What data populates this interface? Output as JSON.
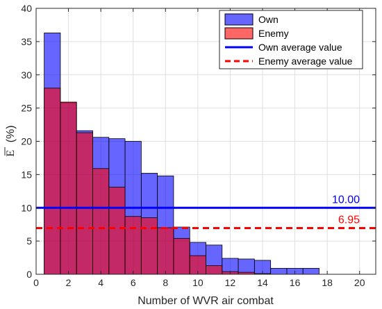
{
  "chart_data": {
    "type": "bar",
    "xlabel": "Number of WVR air combat",
    "ylabel": "E (%)",
    "ylabel_parts": {
      "symbol": "E",
      "unit": "(%)"
    },
    "xlim": [
      0,
      21
    ],
    "ylim": [
      0,
      40
    ],
    "xticks": [
      0,
      2,
      4,
      6,
      8,
      10,
      12,
      14,
      16,
      18,
      20
    ],
    "yticks": [
      0,
      5,
      10,
      15,
      20,
      25,
      30,
      35,
      40
    ],
    "grid": true,
    "legend_position": "top-right",
    "bin_width": 1,
    "bin_left_edges": [
      0.5,
      1.5,
      2.5,
      3.5,
      4.5,
      5.5,
      6.5,
      7.5,
      8.5,
      9.5,
      10.5,
      11.5,
      12.5,
      13.5,
      14.5,
      15.5,
      16.5
    ],
    "series": [
      {
        "name": "Own",
        "color": "#0000ff",
        "opacity": 0.6,
        "values": [
          36.3,
          25.8,
          21.6,
          20.6,
          20.4,
          20.0,
          15.2,
          14.8,
          7.1,
          4.8,
          4.4,
          2.4,
          2.3,
          2.1,
          0.9,
          0.9,
          0.9
        ]
      },
      {
        "name": "Enemy",
        "color": "#ff0000",
        "opacity": 0.6,
        "values": [
          28.0,
          25.9,
          21.3,
          15.9,
          13.1,
          8.7,
          8.5,
          7.0,
          5.4,
          2.8,
          1.3,
          0.4,
          0.3,
          0.1
        ]
      }
    ],
    "reference_lines": [
      {
        "name": "Own average value",
        "value": 10.0,
        "label": "10.00",
        "color": "#0000ff",
        "style": "solid"
      },
      {
        "name": "Enemy average value",
        "value": 6.95,
        "label": "6.95",
        "color": "#ff0000",
        "style": "dashed"
      }
    ]
  }
}
